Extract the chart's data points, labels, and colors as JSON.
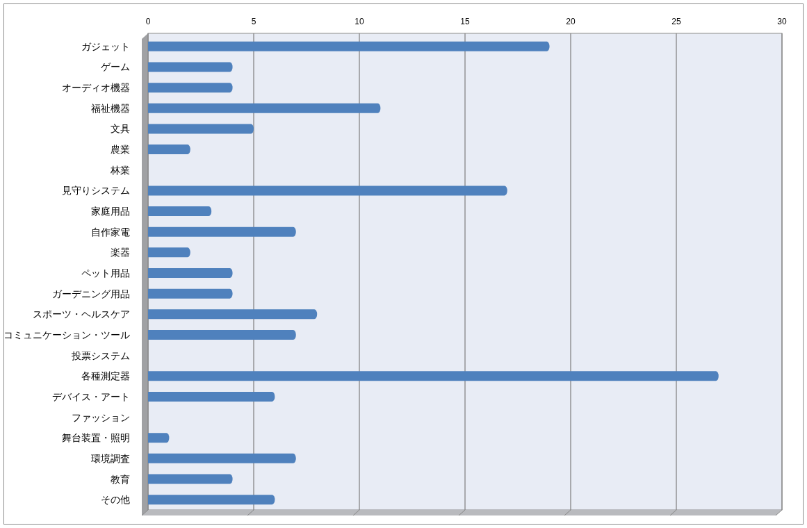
{
  "chart_data": {
    "type": "bar",
    "orientation": "horizontal",
    "categories": [
      "ガジェット",
      "ゲーム",
      "オーディオ機器",
      "福祉機器",
      "文具",
      "農業",
      "林業",
      "見守りシステム",
      "家庭用品",
      "自作家電",
      "楽器",
      "ペット用品",
      "ガーデニング用品",
      "スポーツ・ヘルスケア",
      "コミュニケーション・ツール",
      "投票システム",
      "各種測定器",
      "デバイス・アート",
      "ファッション",
      "舞台装置・照明",
      "環境調査",
      "教育",
      "その他"
    ],
    "values": [
      19,
      4,
      4,
      11,
      5,
      2,
      0,
      17,
      3,
      7,
      2,
      4,
      4,
      8,
      7,
      0,
      27,
      6,
      0,
      1,
      7,
      4,
      6
    ],
    "color": "#4f81bd",
    "xlim": [
      0,
      30
    ],
    "xticks": [
      0,
      5,
      10,
      15,
      20,
      25,
      30
    ],
    "grid": "x"
  }
}
